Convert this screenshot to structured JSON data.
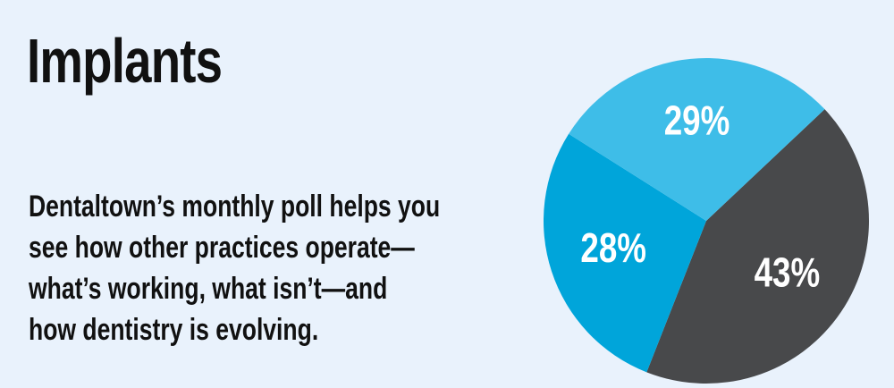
{
  "chart_data": {
    "type": "pie",
    "title": "Implants",
    "description_lines": [
      "Dentaltown’s monthly poll helps you",
      "see how other practices operate—",
      "what’s working, what isn’t—and",
      "how dentistry is evolving."
    ],
    "values": [
      43,
      28,
      29
    ],
    "value_labels": [
      "43%",
      "28%",
      "29%"
    ],
    "colors": [
      "#48494b",
      "#00a5da",
      "#3ebde8"
    ]
  }
}
